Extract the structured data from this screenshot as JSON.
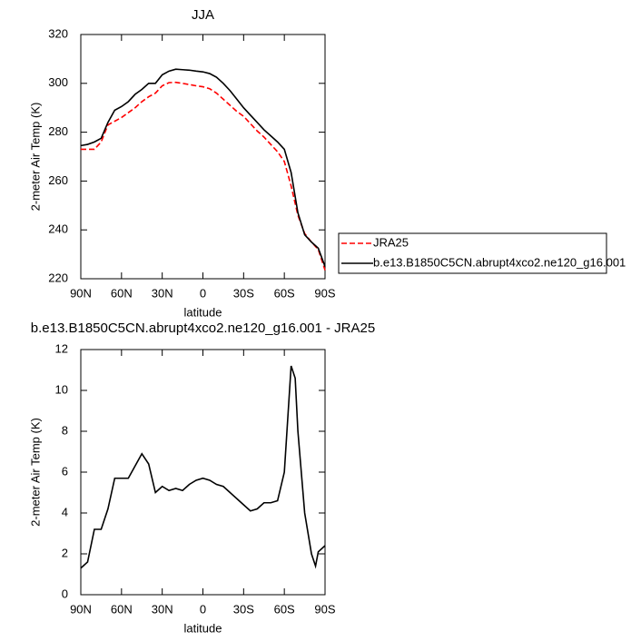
{
  "chart_data": [
    {
      "type": "line",
      "title": "JJA",
      "xlabel": "latitude",
      "ylabel": "2-meter Air Temp (K)",
      "x": [
        90,
        85,
        80,
        75,
        70,
        65,
        60,
        55,
        50,
        45,
        40,
        35,
        30,
        25,
        20,
        15,
        10,
        5,
        0,
        -5,
        -10,
        -15,
        -20,
        -25,
        -30,
        -35,
        -40,
        -45,
        -50,
        -55,
        -60,
        -65,
        -70,
        -75,
        -80,
        -85,
        -90
      ],
      "series": [
        {
          "name": "JRA25",
          "color": "#ff0000",
          "line_style": "dashed",
          "values": [
            273,
            273,
            273,
            276,
            283,
            284.5,
            286,
            288,
            290,
            292.5,
            294.5,
            296,
            299,
            300.3,
            300.4,
            300,
            299.5,
            299,
            298.6,
            297.8,
            296,
            293.5,
            291,
            288.5,
            286.5,
            283.5,
            280.5,
            278,
            275,
            272,
            268,
            258,
            246,
            238.5,
            235,
            232,
            223.5
          ]
        },
        {
          "name": "b.e13.B1850C5CN.abrupt4xco2.ne120_g16.001",
          "color": "#000000",
          "line_style": "solid",
          "values": [
            274.5,
            275,
            276,
            277.5,
            284,
            289,
            290.5,
            292.5,
            295.5,
            297.5,
            300,
            300,
            303.5,
            305,
            305.8,
            305.6,
            305.4,
            305,
            304.7,
            304,
            302.5,
            300,
            297,
            293.5,
            290,
            287,
            284,
            281,
            278.5,
            276,
            273,
            263.5,
            247,
            238,
            235,
            232.5,
            225
          ]
        }
      ],
      "xlim": [
        90,
        -90
      ],
      "xticks": [
        {
          "value": 90,
          "label": "90N"
        },
        {
          "value": 60,
          "label": "60N"
        },
        {
          "value": 30,
          "label": "30N"
        },
        0,
        {
          "value": -30,
          "label": "30S"
        },
        {
          "value": -60,
          "label": "60S"
        },
        {
          "value": -90,
          "label": "90S"
        }
      ],
      "ylim": [
        220,
        320
      ],
      "yticks": [
        220,
        240,
        260,
        280,
        300,
        320
      ],
      "legend": "outside-right"
    },
    {
      "type": "line",
      "title": "b.e13.B1850C5CN.abrupt4xco2.ne120_g16.001 - JRA25",
      "xlabel": "latitude",
      "ylabel": "2-meter Air Temp (K)",
      "x": [
        90,
        85,
        80,
        75,
        70,
        65,
        60,
        55,
        50,
        45,
        40,
        35,
        30,
        25,
        20,
        15,
        10,
        5,
        0,
        -5,
        -10,
        -15,
        -20,
        -25,
        -30,
        -35,
        -40,
        -45,
        -50,
        -55,
        -60,
        -65,
        -68,
        -70,
        -75,
        -80,
        -83,
        -85,
        -90
      ],
      "series": [
        {
          "color": "#000000",
          "line_style": "solid",
          "values": [
            1.3,
            1.6,
            3.2,
            3.2,
            4.2,
            5.7,
            5.7,
            5.7,
            6.3,
            6.9,
            6.4,
            5.0,
            5.3,
            5.1,
            5.2,
            5.1,
            5.4,
            5.6,
            5.7,
            5.6,
            5.4,
            5.3,
            5.0,
            4.7,
            4.4,
            4.1,
            4.2,
            4.5,
            4.5,
            4.6,
            6.0,
            11.2,
            10.6,
            8.0,
            4.0,
            2.0,
            1.4,
            2.1,
            2.4
          ]
        }
      ],
      "xlim": [
        90,
        -90
      ],
      "xticks": [
        {
          "value": 90,
          "label": "90N"
        },
        {
          "value": 60,
          "label": "60N"
        },
        {
          "value": 30,
          "label": "30N"
        },
        0,
        {
          "value": -30,
          "label": "30S"
        },
        {
          "value": -60,
          "label": "60S"
        },
        {
          "value": -90,
          "label": "90S"
        }
      ],
      "ylim": [
        0,
        12
      ],
      "yticks": [
        0,
        2,
        4,
        6,
        8,
        10,
        12
      ]
    }
  ]
}
